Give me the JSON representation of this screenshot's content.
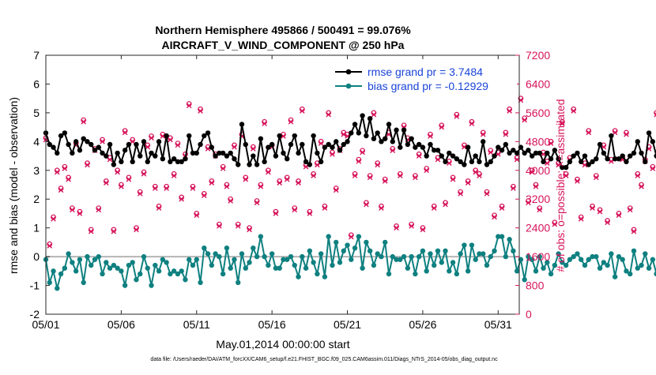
{
  "chart_data": {
    "type": "line",
    "title": "Northern Hemisphere 495866 / 500491 = 99.076%",
    "subtitle": "AIRCRAFT_V_WIND_COMPONENT @ 250 hPa",
    "xlabel": "May.01,2014 00:00:00 start",
    "ylabel": "rmse and bias (model - observation)",
    "ylabel_right": "# of obs: o=possible; ×=assimilated",
    "ylim": [
      -2,
      7
    ],
    "ylim_right": [
      0,
      7200
    ],
    "xlim": [
      0,
      31.4
    ],
    "grid": false,
    "legend_position": "top-right",
    "yticks": [
      "-2",
      "-1",
      "0",
      "1",
      "2",
      "3",
      "4",
      "5",
      "6",
      "7"
    ],
    "yticks_right": [
      "0",
      "800",
      "1600",
      "2400",
      "3200",
      "4000",
      "4800",
      "5600",
      "6400",
      "7200"
    ],
    "xticks": [
      {
        "label": "05/01",
        "x": 0
      },
      {
        "label": "05/06",
        "x": 5
      },
      {
        "label": "05/11",
        "x": 10
      },
      {
        "label": "05/16",
        "x": 15
      },
      {
        "label": "05/21",
        "x": 20
      },
      {
        "label": "05/26",
        "x": 25
      },
      {
        "label": "05/31",
        "x": 30
      }
    ],
    "step_days": 0.25,
    "series": [
      {
        "name": "rmse grand pr = 3.7484",
        "color": "#000000",
        "values": [
          4.3,
          3.9,
          3.8,
          3.6,
          4.2,
          4.3,
          3.9,
          3.6,
          4.0,
          3.7,
          4.1,
          4.0,
          3.9,
          3.7,
          3.8,
          3.6,
          3.5,
          3.9,
          3.2,
          3.6,
          3.3,
          3.7,
          3.9,
          3.3,
          3.9,
          3.5,
          4.0,
          3.3,
          3.6,
          3.5,
          4.0,
          3.4,
          4.2,
          3.3,
          3.4,
          3.3,
          3.3,
          3.4,
          4.2,
          3.6,
          3.6,
          3.9,
          4.2,
          4.3,
          3.8,
          3.5,
          3.6,
          3.6,
          3.5,
          3.6,
          3.4,
          3.2,
          4.6,
          3.9,
          3.2,
          3.5,
          3.2,
          4.1,
          3.3,
          3.8,
          3.9,
          3.5,
          4.2,
          3.6,
          3.4,
          3.9,
          4.2,
          3.6,
          3.9,
          3.3,
          3.2,
          4.2,
          3.6,
          3.3,
          3.8,
          3.9,
          3.8,
          4.0,
          3.7,
          3.9,
          4.0,
          4.3,
          4.6,
          4.3,
          4.9,
          4.2,
          4.8,
          4.1,
          4.3,
          4.0,
          4.1,
          4.6,
          4.0,
          4.4,
          3.8,
          4.4,
          3.9,
          4.1,
          3.8,
          3.9,
          3.8,
          3.5,
          3.9,
          3.7,
          3.7,
          3.5,
          3.3,
          3.6,
          3.5,
          3.4,
          3.3,
          3.2,
          3.8,
          3.3,
          3.5,
          3.3,
          4.0,
          3.2,
          3.3,
          3.5,
          3.8,
          3.7,
          3.9,
          3.6,
          3.7,
          3.6,
          3.8,
          3.6,
          3.7,
          3.5,
          3.6,
          3.6,
          3.3,
          3.6,
          3.4,
          3.7,
          3.4,
          3.1,
          3.1,
          3.3,
          3.5,
          3.6,
          3.3,
          3.5,
          3.2,
          3.3,
          3.4,
          3.9,
          3.6,
          3.4,
          4.2,
          3.4,
          3.4,
          3.5,
          3.3,
          3.5,
          3.6,
          4.0,
          3.6,
          3.3,
          4.3,
          4.0,
          3.5,
          3.6,
          4.2,
          4.5,
          3.7,
          3.8
        ]
      },
      {
        "name": "bias grand pr = -0.12929",
        "color": "#0f8080",
        "values": [
          -0.1,
          -0.9,
          -0.5,
          -1.1,
          -0.6,
          -0.4,
          0.1,
          -0.2,
          -0.5,
          -0.1,
          -0.9,
          0.0,
          -0.3,
          -0.1,
          0.0,
          -0.6,
          -0.2,
          -0.4,
          -0.3,
          -0.4,
          -0.5,
          -1.0,
          -0.3,
          -0.2,
          -0.8,
          -0.6,
          0.0,
          -0.4,
          -1.0,
          -0.3,
          -0.5,
          -0.1,
          -0.2,
          -0.6,
          -0.5,
          -0.6,
          -0.5,
          -0.8,
          -0.1,
          -0.3,
          -0.1,
          -0.9,
          0.3,
          0.1,
          -0.3,
          0.1,
          0.0,
          -0.6,
          0.3,
          -0.4,
          -0.1,
          -0.9,
          0.1,
          -0.4,
          -0.2,
          0.3,
          0.0,
          0.7,
          0.0,
          -0.3,
          0.1,
          -0.4,
          -0.4,
          -0.1,
          -0.1,
          0.0,
          -0.3,
          -0.7,
          0.0,
          -0.4,
          0.2,
          -0.2,
          -0.6,
          0.1,
          -0.7,
          0.7,
          -0.3,
          0.5,
          -0.2,
          0.2,
          0.4,
          -0.1,
          0.3,
          0.7,
          -0.4,
          0.5,
          0.2,
          -0.3,
          0.1,
          0.0,
          0.5,
          -0.6,
          0.0,
          -0.1,
          -0.1,
          0.0,
          -0.4,
          0.0,
          -0.6,
          0.0,
          0.2,
          -0.5,
          0.1,
          -0.3,
          0.2,
          -0.2,
          0.2,
          -0.5,
          -0.2,
          -0.6,
          0.1,
          0.4,
          -0.5,
          0.4,
          -0.1,
          0.1,
          0.1,
          -0.3,
          0.0,
          0.2,
          0.7,
          0.7,
          0.0,
          0.6,
          0.2,
          -0.5,
          -0.1,
          -0.8,
          0.0,
          -0.1,
          -0.5,
          0.0,
          -0.4,
          -0.2,
          -0.6,
          -0.3,
          0.1,
          -0.2,
          -0.3,
          -0.1,
          0.0,
          0.1,
          -0.1,
          -0.3,
          -0.1,
          0.0,
          0.0,
          -0.4,
          -0.2,
          -0.3,
          0.1,
          -0.7,
          0.0,
          -0.1,
          -0.5,
          -0.6,
          0.2,
          -0.4,
          -0.3,
          0.1,
          -0.4,
          -0.1,
          -0.6,
          -0.1,
          0.0,
          -0.2,
          -0.3
        ]
      },
      {
        "name": "possible",
        "color": "#d6145a",
        "axis": "right",
        "marker": "circle",
        "values": [
          4900,
          1950,
          2700,
          4000,
          3500,
          4100,
          3800,
          2950,
          4750,
          2850,
          5400,
          4200,
          2350,
          4600,
          2950,
          4850,
          3700,
          4350,
          2350,
          4000,
          3600,
          5100,
          3800,
          4850,
          2400,
          3400,
          3950,
          4700,
          4950,
          3550,
          3000,
          5000,
          3550,
          4900,
          3900,
          4750,
          3250,
          4450,
          5850,
          3550,
          2800,
          5700,
          3350,
          4650,
          3700,
          4450,
          2500,
          4100,
          3600,
          3200,
          4700,
          2500,
          5000,
          3800,
          2400,
          4650,
          3150,
          3600,
          5350,
          4000,
          4700,
          2850,
          3700,
          5000,
          3800,
          5400,
          2950,
          3700,
          5700,
          4150,
          2850,
          3900,
          4200,
          4800,
          3000,
          5600,
          4500,
          3500,
          4600,
          5050,
          5000,
          2200,
          3900,
          4300,
          4550,
          3100,
          3850,
          5600,
          4200,
          3000,
          3750,
          5050,
          4600,
          2450,
          3900,
          5250,
          4900,
          2500,
          3850,
          4450,
          2400,
          4050,
          5000,
          3000,
          4350,
          5250,
          3100,
          4250,
          3800,
          5550,
          3400,
          4700,
          3700,
          5350,
          4000,
          3900,
          5050,
          3400,
          4550,
          2750,
          4500,
          3000,
          5050,
          5700,
          3550,
          4350,
          6000,
          5450,
          3150,
          4000,
          3600,
          2950,
          4500,
          4250,
          4800,
          2550,
          4200,
          5350,
          3900,
          4350,
          5700,
          3750,
          2700,
          4200,
          5100,
          3000,
          3850,
          2900,
          4700,
          2600,
          4300,
          5100,
          2800,
          4350,
          5050,
          2950,
          2350,
          3900,
          3600,
          4300,
          4650,
          4100,
          5600,
          4350,
          3050,
          3900,
          2650,
          4900,
          4250,
          5600,
          4850,
          4350
        ]
      },
      {
        "name": "assimilated",
        "color": "#d6145a",
        "axis": "right",
        "marker": "x",
        "values": [
          4850,
          1900,
          2650,
          3950,
          3450,
          4050,
          3750,
          2900,
          4700,
          2800,
          5350,
          4150,
          2300,
          4550,
          2900,
          4800,
          3650,
          4300,
          2300,
          3950,
          3550,
          5050,
          3750,
          4800,
          2350,
          3350,
          3900,
          4650,
          4900,
          3500,
          2950,
          4950,
          3500,
          4850,
          3850,
          4700,
          3200,
          4400,
          5800,
          3500,
          2750,
          5650,
          3300,
          4600,
          3650,
          4400,
          2450,
          4050,
          3550,
          3150,
          4650,
          2450,
          4950,
          3750,
          2350,
          4600,
          3100,
          3550,
          5300,
          3950,
          4650,
          2800,
          3650,
          4950,
          3750,
          5350,
          2900,
          3650,
          5650,
          4100,
          2800,
          3850,
          4150,
          4750,
          2950,
          5550,
          4450,
          3450,
          4550,
          5000,
          4950,
          2150,
          3850,
          4250,
          4500,
          3050,
          3800,
          5550,
          4150,
          2950,
          3700,
          5000,
          4550,
          2400,
          3850,
          5200,
          4850,
          2450,
          3800,
          4400,
          2350,
          4000,
          4950,
          2950,
          4300,
          5200,
          3050,
          4200,
          3750,
          5500,
          3350,
          4650,
          3650,
          5300,
          3950,
          3850,
          5000,
          3350,
          4500,
          2700,
          4450,
          2950,
          5000,
          5650,
          3500,
          4300,
          5950,
          5400,
          3100,
          3950,
          3550,
          2900,
          4450,
          4200,
          4750,
          2500,
          4150,
          5300,
          3850,
          4300,
          5650,
          3700,
          2650,
          4150,
          5050,
          2950,
          3800,
          2850,
          4650,
          2550,
          4250,
          5050,
          2750,
          4300,
          5000,
          2900,
          2300,
          3850,
          3550,
          4250,
          4600,
          4050,
          5550,
          4300,
          3000,
          3850,
          2600,
          4850,
          4200,
          5550,
          4800,
          4300
        ]
      }
    ],
    "zero_line": 0
  },
  "footer": {
    "data_file": "data file: /Users/raeder/DAI/ATM_forcXX/CAM6_setup/f.e21.FHIST_BGC.f09_025.CAM6assim.011/Diags_NTrS_2014-05/obs_diag_output.nc"
  },
  "colors": {
    "rmse": "#000000",
    "bias": "#0f8080",
    "obs": "#d6145a",
    "legend_text": "#1a44d8",
    "zero_line": "#b4b4b4"
  }
}
